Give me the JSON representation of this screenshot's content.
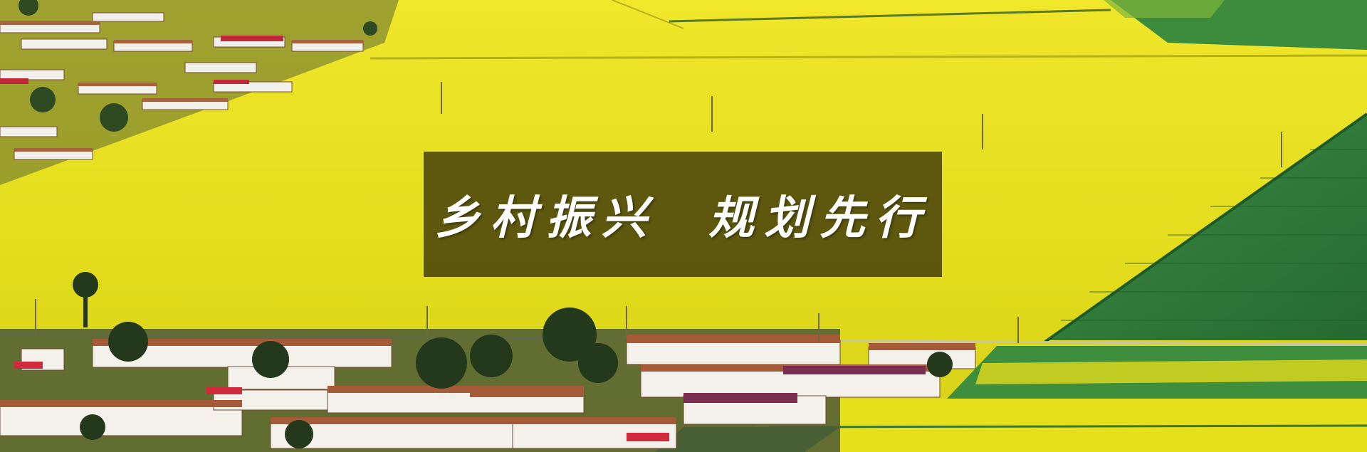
{
  "banner": {
    "headline": "乡村振兴  规划先行"
  },
  "colors": {
    "field_yellow": "#e8e21a",
    "field_green": "#2f7a3a",
    "overlay": "#37320a"
  }
}
